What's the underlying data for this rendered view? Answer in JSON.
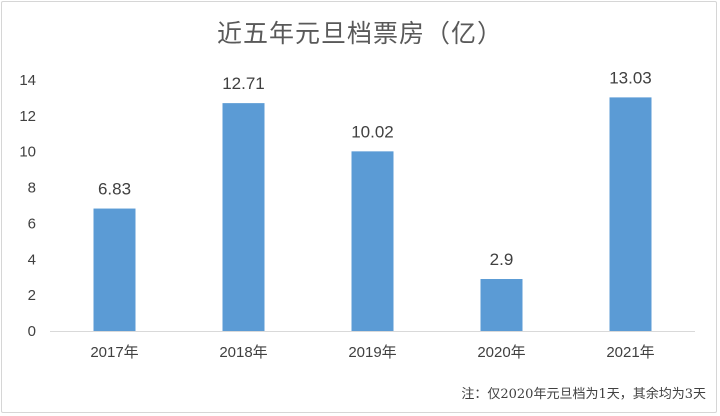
{
  "chart_data": {
    "type": "bar",
    "title": "近五年元旦档票房（亿）",
    "categories": [
      "2017年",
      "2018年",
      "2019年",
      "2020年",
      "2021年"
    ],
    "values": [
      6.83,
      12.71,
      10.02,
      2.9,
      13.03
    ],
    "data_labels": [
      "6.83",
      "12.71",
      "10.02",
      "2.9",
      "13.03"
    ],
    "ylim": [
      0,
      14
    ],
    "yticks": [
      "0",
      "2",
      "4",
      "6",
      "8",
      "10",
      "12",
      "14"
    ],
    "xlabel": "",
    "ylabel": "",
    "grid": false,
    "legend": "none",
    "bar_color": "#5b9bd5",
    "note": "注：仅2020年元旦档为1天，其余均为3天"
  }
}
